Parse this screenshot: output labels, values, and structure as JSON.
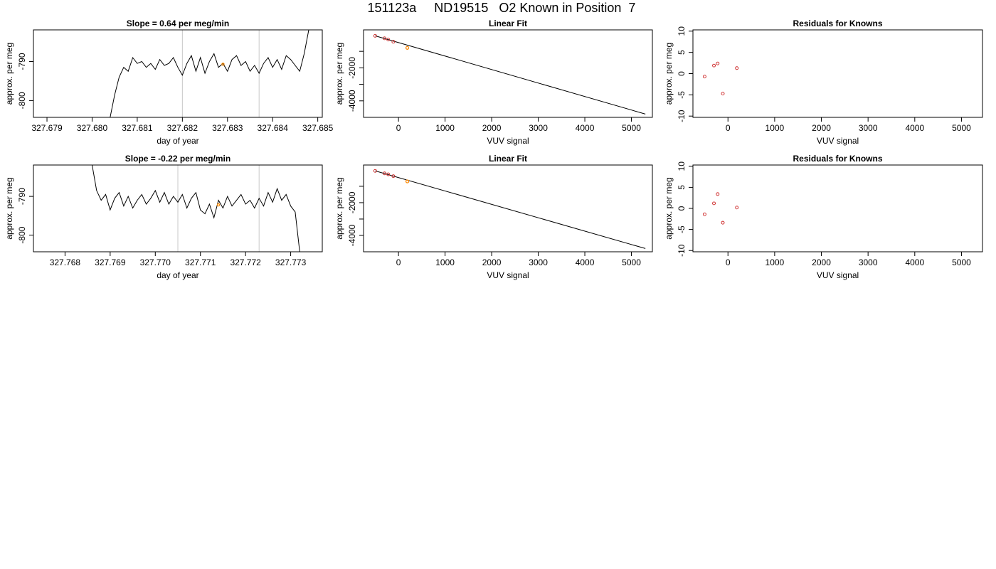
{
  "page_title": "151123a     ND19515   O2 Known in Position  7",
  "chart_data": [
    {
      "type": "line",
      "title": "Slope =  0.64  per meg/min",
      "xlabel": "day of year",
      "ylabel": "approx. per meg",
      "xlim": [
        327.6787,
        327.6851
      ],
      "ylim": [
        -804.3,
        -781.9
      ],
      "xticks": [
        327.679,
        327.68,
        327.681,
        327.682,
        327.683,
        327.684,
        327.685
      ],
      "xtick_labels": [
        "327.679",
        "327.680",
        "327.681",
        "327.682",
        "327.683",
        "327.684",
        "327.685"
      ],
      "yticks": [
        -800,
        -790
      ],
      "ytick_labels": [
        "-800",
        "-790"
      ],
      "vlines": [
        327.682,
        327.6837
      ],
      "series": [
        {
          "x": [
            327.6804,
            327.6805,
            327.6806,
            327.6807,
            327.6808,
            327.6809,
            327.681,
            327.6811,
            327.6812,
            327.6813,
            327.6814,
            327.6815,
            327.6816,
            327.6817,
            327.6818,
            327.6819,
            327.682,
            327.6821,
            327.6822,
            327.6823,
            327.6824,
            327.6825,
            327.6826,
            327.6827,
            327.6828,
            327.6829,
            327.683,
            327.6831,
            327.6832,
            327.6833,
            327.6834,
            327.6835,
            327.6836,
            327.6837,
            327.6838,
            327.6839,
            327.684,
            327.6841,
            327.6842,
            327.6843,
            327.6844,
            327.6845,
            327.6846,
            327.6847,
            327.6848
          ],
          "y": [
            -804.3,
            -798.5,
            -794.0,
            -791.5,
            -792.5,
            -789.0,
            -790.5,
            -790.0,
            -791.5,
            -790.5,
            -792.0,
            -789.5,
            -791.0,
            -790.5,
            -789.0,
            -791.5,
            -793.5,
            -790.5,
            -788.5,
            -792.5,
            -789.0,
            -793.0,
            -790.0,
            -788.0,
            -791.5,
            -790.5,
            -792.5,
            -789.5,
            -788.5,
            -791.0,
            -790.0,
            -792.5,
            -791.0,
            -793.0,
            -790.5,
            -789.0,
            -791.5,
            -789.5,
            -792.0,
            -788.5,
            -789.5,
            -791.0,
            -792.5,
            -788.0,
            -781.9
          ]
        }
      ],
      "markers": [
        {
          "x": 327.6829,
          "y": -790.7
        }
      ]
    },
    {
      "type": "scatter",
      "title": "Linear Fit",
      "xlabel": "VUV signal",
      "ylabel": "approx. per meg",
      "xlim": [
        -750,
        5450
      ],
      "ylim": [
        -5000,
        300
      ],
      "xticks": [
        0,
        1000,
        2000,
        3000,
        4000,
        5000
      ],
      "xtick_labels": [
        "0",
        "1000",
        "2000",
        "3000",
        "4000",
        "5000"
      ],
      "yticks": [
        -4000,
        -3000,
        -2000,
        -1000
      ],
      "ytick_labels": [
        "-4000",
        "",
        "-2000",
        ""
      ],
      "fit_line": {
        "x": [
          -500,
          5300
        ],
        "y": [
          -60,
          -4800
        ]
      },
      "points": [
        {
          "x": -500,
          "y": -60
        },
        {
          "x": -300,
          "y": -210
        },
        {
          "x": -220,
          "y": -290
        },
        {
          "x": -110,
          "y": -420
        },
        {
          "x": 190,
          "y": -790
        }
      ],
      "highlight": [
        {
          "x": 190,
          "y": -790
        }
      ]
    },
    {
      "type": "scatter",
      "title": "Residuals for Knowns",
      "xlabel": "VUV signal",
      "ylabel": "approx. per meg",
      "xlim": [
        -750,
        5450
      ],
      "ylim": [
        -10.3,
        10.3
      ],
      "xticks": [
        0,
        1000,
        2000,
        3000,
        4000,
        5000
      ],
      "xtick_labels": [
        "0",
        "1000",
        "2000",
        "3000",
        "4000",
        "5000"
      ],
      "yticks": [
        -10,
        -5,
        0,
        5,
        10
      ],
      "ytick_labels": [
        "-10",
        "-5",
        "0",
        "5",
        "10"
      ],
      "points": [
        {
          "x": -500,
          "y": -0.7
        },
        {
          "x": -300,
          "y": 1.9
        },
        {
          "x": -220,
          "y": 2.4
        },
        {
          "x": -110,
          "y": -4.7
        },
        {
          "x": 190,
          "y": 1.3
        }
      ]
    },
    {
      "type": "line",
      "title": "Slope =  -0.22  per meg/min",
      "xlabel": "day of year",
      "ylabel": "approx. per meg",
      "xlim": [
        327.7673,
        327.7737
      ],
      "ylim": [
        -804.3,
        -781.9
      ],
      "xticks": [
        327.768,
        327.769,
        327.77,
        327.771,
        327.772,
        327.773
      ],
      "xtick_labels": [
        "327.768",
        "327.769",
        "327.770",
        "327.771",
        "327.772",
        "327.773"
      ],
      "yticks": [
        -800,
        -790
      ],
      "ytick_labels": [
        "-800",
        "-790"
      ],
      "vlines": [
        327.7705,
        327.7723
      ],
      "series": [
        {
          "x": [
            327.7686,
            327.7687,
            327.7688,
            327.7689,
            327.769,
            327.7691,
            327.7692,
            327.7693,
            327.7694,
            327.7695,
            327.7696,
            327.7697,
            327.7698,
            327.7699,
            327.77,
            327.7701,
            327.7702,
            327.7703,
            327.7704,
            327.7705,
            327.7706,
            327.7707,
            327.7708,
            327.7709,
            327.771,
            327.7711,
            327.7712,
            327.7713,
            327.7714,
            327.7715,
            327.7716,
            327.7717,
            327.7718,
            327.7719,
            327.772,
            327.7721,
            327.7722,
            327.7723,
            327.7724,
            327.7725,
            327.7726,
            327.7727,
            327.7728,
            327.7729,
            327.773,
            327.7731,
            327.7732
          ],
          "y": [
            -781.9,
            -788.5,
            -791.0,
            -789.5,
            -793.5,
            -790.5,
            -789.0,
            -792.5,
            -790.0,
            -793.0,
            -791.0,
            -789.5,
            -792.0,
            -790.5,
            -788.5,
            -791.5,
            -789.0,
            -792.0,
            -790.0,
            -791.5,
            -789.5,
            -793.0,
            -790.5,
            -789.0,
            -793.5,
            -794.5,
            -792.0,
            -795.5,
            -791.0,
            -793.0,
            -790.0,
            -792.5,
            -791.0,
            -789.5,
            -792.0,
            -791.0,
            -793.0,
            -790.5,
            -792.5,
            -789.0,
            -791.5,
            -788.0,
            -791.0,
            -789.5,
            -792.5,
            -794.0,
            -804.3
          ]
        }
      ],
      "markers": [
        {
          "x": 327.7714,
          "y": -792.2
        }
      ]
    },
    {
      "type": "scatter",
      "title": "Linear Fit",
      "xlabel": "VUV signal",
      "ylabel": "approx. per meg",
      "xlim": [
        -750,
        5450
      ],
      "ylim": [
        -5000,
        300
      ],
      "xticks": [
        0,
        1000,
        2000,
        3000,
        4000,
        5000
      ],
      "xtick_labels": [
        "0",
        "1000",
        "2000",
        "3000",
        "4000",
        "5000"
      ],
      "yticks": [
        -4000,
        -3000,
        -2000,
        -1000
      ],
      "ytick_labels": [
        "-4000",
        "",
        "-2000",
        ""
      ],
      "fit_line": {
        "x": [
          -500,
          5300
        ],
        "y": [
          -60,
          -4800
        ]
      },
      "points": [
        {
          "x": -500,
          "y": -60
        },
        {
          "x": -300,
          "y": -210
        },
        {
          "x": -220,
          "y": -270
        },
        {
          "x": -110,
          "y": -380
        },
        {
          "x": 190,
          "y": -700
        }
      ],
      "highlight": [
        {
          "x": 190,
          "y": -700
        }
      ]
    },
    {
      "type": "scatter",
      "title": "Residuals for Knowns",
      "xlabel": "VUV signal",
      "ylabel": "approx. per meg",
      "xlim": [
        -750,
        5450
      ],
      "ylim": [
        -10.3,
        10.3
      ],
      "xticks": [
        0,
        1000,
        2000,
        3000,
        4000,
        5000
      ],
      "xtick_labels": [
        "0",
        "1000",
        "2000",
        "3000",
        "4000",
        "5000"
      ],
      "yticks": [
        -10,
        -5,
        0,
        5,
        10
      ],
      "ytick_labels": [
        "-10",
        "-5",
        "0",
        "5",
        "10"
      ],
      "points": [
        {
          "x": -500,
          "y": -1.4
        },
        {
          "x": -300,
          "y": 1.2
        },
        {
          "x": -220,
          "y": 3.4
        },
        {
          "x": -110,
          "y": -3.4
        },
        {
          "x": 190,
          "y": 0.2
        }
      ]
    }
  ]
}
